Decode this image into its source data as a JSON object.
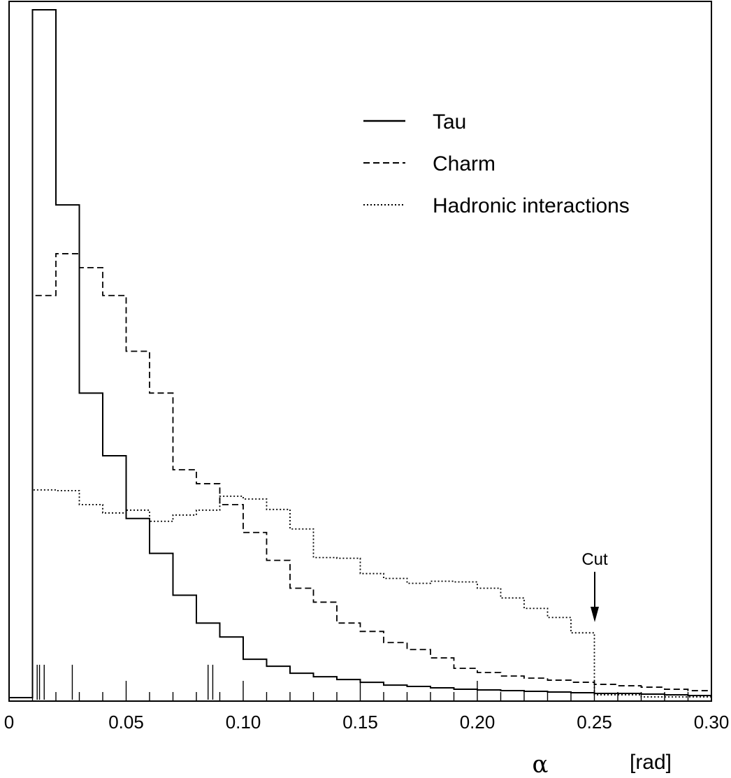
{
  "chart_data": {
    "type": "line",
    "step": true,
    "title": "",
    "xlabel_symbol": "α",
    "xlabel_unit": "[rad]",
    "ylabel": "",
    "xlim": [
      0,
      0.3
    ],
    "ylim": [
      0,
      1.0
    ],
    "xticks": [
      0,
      0.05,
      0.1,
      0.15,
      0.2,
      0.25,
      0.3
    ],
    "xtick_labels": [
      "0",
      "0.05",
      "0.10",
      "0.15",
      "0.20",
      "0.25",
      "0.30"
    ],
    "grid": false,
    "legend_position": "top-right",
    "bin_edges": [
      0,
      0.01,
      0.02,
      0.03,
      0.04,
      0.05,
      0.06,
      0.07,
      0.08,
      0.09,
      0.1,
      0.11,
      0.12,
      0.13,
      0.14,
      0.15,
      0.16,
      0.17,
      0.18,
      0.19,
      0.2,
      0.21,
      0.22,
      0.23,
      0.24,
      0.25,
      0.26,
      0.27,
      0.28,
      0.29,
      0.3
    ],
    "series": [
      {
        "name": "Tau",
        "style": "solid",
        "values": [
          0.003,
          0.99,
          0.71,
          0.44,
          0.35,
          0.26,
          0.21,
          0.15,
          0.11,
          0.09,
          0.058,
          0.048,
          0.038,
          0.033,
          0.029,
          0.025,
          0.021,
          0.019,
          0.017,
          0.015,
          0.014,
          0.013,
          0.012,
          0.011,
          0.01,
          0.009,
          0.009,
          0.008,
          0.007,
          0.006
        ]
      },
      {
        "name": "Charm",
        "style": "dashed",
        "values": [
          0.003,
          0.58,
          0.64,
          0.62,
          0.58,
          0.5,
          0.44,
          0.33,
          0.31,
          0.28,
          0.24,
          0.2,
          0.16,
          0.14,
          0.11,
          0.098,
          0.082,
          0.072,
          0.06,
          0.045,
          0.039,
          0.034,
          0.031,
          0.028,
          0.025,
          0.022,
          0.02,
          0.018,
          0.015,
          0.013
        ]
      },
      {
        "name": "Hadronic interactions",
        "style": "dotted",
        "values": [
          0.003,
          0.301,
          0.3,
          0.28,
          0.268,
          0.272,
          0.256,
          0.265,
          0.272,
          0.292,
          0.288,
          0.273,
          0.245,
          0.204,
          0.203,
          0.181,
          0.174,
          0.167,
          0.17,
          0.169,
          0.16,
          0.146,
          0.131,
          0.118,
          0.096,
          0.007,
          0.007,
          0.004,
          0.004,
          0.004
        ]
      }
    ],
    "rug_ticks": [
      0.012,
      0.013,
      0.015,
      0.027,
      0.085,
      0.087
    ],
    "annotations": [
      {
        "text": "Cut",
        "x": 0.25,
        "arrow": "down"
      }
    ]
  }
}
